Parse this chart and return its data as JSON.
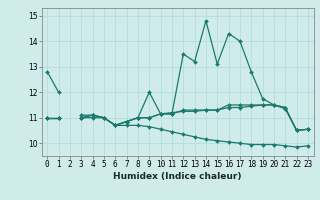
{
  "xlabel": "Humidex (Indice chaleur)",
  "x": [
    0,
    1,
    2,
    3,
    4,
    5,
    6,
    7,
    8,
    9,
    10,
    11,
    12,
    13,
    14,
    15,
    16,
    17,
    18,
    19,
    20,
    21,
    22,
    23
  ],
  "series1": [
    12.8,
    12.0,
    null,
    11.1,
    11.1,
    11.0,
    10.7,
    10.85,
    11.0,
    12.0,
    11.15,
    11.15,
    13.5,
    13.2,
    14.8,
    13.1,
    14.3,
    14.0,
    12.8,
    11.75,
    11.5,
    11.4,
    10.5,
    10.55
  ],
  "series2": [
    11.0,
    11.0,
    null,
    11.0,
    11.1,
    11.0,
    10.7,
    10.85,
    11.0,
    11.0,
    11.15,
    11.15,
    11.3,
    11.3,
    11.3,
    11.3,
    11.5,
    11.5,
    11.5,
    11.5,
    11.5,
    11.4,
    10.5,
    10.55
  ],
  "series3": [
    11.0,
    11.0,
    null,
    11.0,
    11.1,
    11.0,
    10.7,
    10.85,
    11.0,
    11.0,
    11.15,
    11.2,
    11.25,
    11.25,
    11.3,
    11.3,
    11.4,
    11.4,
    11.45,
    11.5,
    11.5,
    11.35,
    10.5,
    10.55
  ],
  "series4": [
    11.0,
    11.0,
    null,
    11.0,
    11.0,
    11.0,
    10.7,
    10.7,
    10.7,
    10.65,
    10.55,
    10.45,
    10.35,
    10.25,
    10.15,
    10.1,
    10.05,
    10.0,
    9.95,
    9.95,
    9.95,
    9.9,
    9.85,
    9.9
  ],
  "line_color": "#1a7a6e",
  "bg_color": "#d0ecea",
  "grid_color": "#b8dede",
  "ylim": [
    9.5,
    15.3
  ],
  "yticks": [
    10,
    11,
    12,
    13,
    14,
    15
  ],
  "xticks": [
    0,
    1,
    2,
    3,
    4,
    5,
    6,
    7,
    8,
    9,
    10,
    11,
    12,
    13,
    14,
    15,
    16,
    17,
    18,
    19,
    20,
    21,
    22,
    23
  ],
  "marker": "D",
  "markersize": 2.0,
  "linewidth": 0.9,
  "tick_fontsize": 5.5,
  "xlabel_fontsize": 6.5
}
